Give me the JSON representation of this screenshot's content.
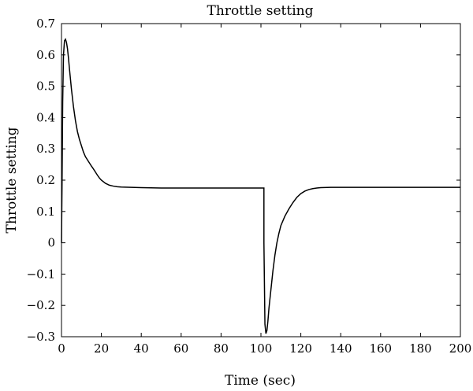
{
  "chart_data": {
    "type": "line",
    "title": "Throttle setting",
    "xlabel": "Time (sec)",
    "ylabel": "Throttle setting",
    "xlim": [
      0,
      200
    ],
    "ylim": [
      -0.3,
      0.7
    ],
    "xticks": [
      0,
      20,
      40,
      60,
      80,
      100,
      120,
      140,
      160,
      180,
      200
    ],
    "yticks": [
      -0.3,
      -0.2,
      -0.1,
      0,
      0.1,
      0.2,
      0.3,
      0.4,
      0.5,
      0.6,
      0.7
    ],
    "ytick_labels": [
      "−0.3",
      "−0.2",
      "−0.1",
      "0",
      "0.1",
      "0.2",
      "0.3",
      "0.4",
      "0.5",
      "0.6",
      "0.7"
    ],
    "grid": false,
    "line_color": "#000000",
    "series": [
      {
        "x": [
          0,
          0.3,
          0.6,
          1,
          1.5,
          2,
          2.5,
          3,
          3.5,
          4,
          5,
          6,
          7,
          8,
          9,
          10,
          11,
          12,
          13,
          14,
          15,
          16,
          17,
          18,
          19,
          20,
          22,
          24,
          26,
          28,
          30,
          35,
          40,
          50,
          60,
          70,
          80,
          90,
          100,
          101.5,
          101.5,
          102,
          102.5,
          103,
          103.5,
          104,
          105,
          106,
          107,
          108,
          109,
          110,
          112,
          114,
          116,
          118,
          120,
          122,
          124,
          126,
          128,
          130,
          135,
          140,
          150,
          160,
          170,
          180,
          190,
          200
        ],
        "y": [
          0.0,
          0.2,
          0.45,
          0.6,
          0.645,
          0.65,
          0.64,
          0.62,
          0.59,
          0.555,
          0.49,
          0.435,
          0.39,
          0.355,
          0.33,
          0.31,
          0.29,
          0.275,
          0.265,
          0.255,
          0.245,
          0.236,
          0.226,
          0.216,
          0.207,
          0.2,
          0.19,
          0.184,
          0.181,
          0.179,
          0.178,
          0.177,
          0.176,
          0.175,
          0.175,
          0.175,
          0.175,
          0.175,
          0.175,
          0.175,
          0.0,
          -0.26,
          -0.29,
          -0.28,
          -0.25,
          -0.21,
          -0.15,
          -0.09,
          -0.04,
          0.0,
          0.03,
          0.055,
          0.085,
          0.108,
          0.128,
          0.145,
          0.157,
          0.165,
          0.17,
          0.173,
          0.175,
          0.176,
          0.177,
          0.177,
          0.177,
          0.177,
          0.177,
          0.177,
          0.177,
          0.177
        ]
      }
    ]
  }
}
